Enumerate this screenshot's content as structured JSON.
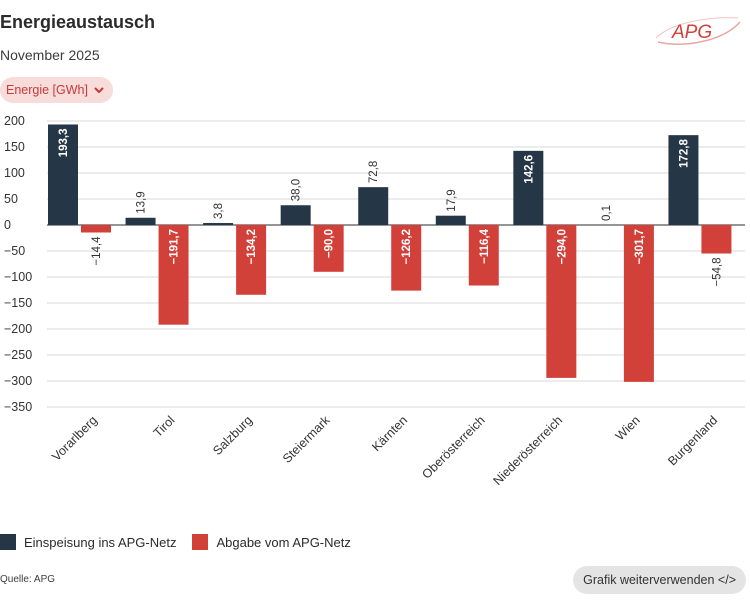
{
  "header": {
    "title": "Energieaustausch",
    "subtitle": "November 2025",
    "unit_selector": "Energie [GWh]"
  },
  "logo": {
    "text": "APG",
    "icon": "apg-logo"
  },
  "legend": {
    "items": [
      {
        "label": "Einspeisung ins APG-Netz",
        "color": "#253746"
      },
      {
        "label": "Abgabe vom APG-Netz",
        "color": "#d2403a"
      }
    ]
  },
  "footer": {
    "source": "Quelle: APG",
    "reuse_label": "Grafik weiterverwenden </>"
  },
  "chart_data": {
    "type": "bar",
    "categories": [
      "Vorarlberg",
      "Tirol",
      "Salzburg",
      "Steiermark",
      "Kärnten",
      "Oberösterreich",
      "Niederösterreich",
      "Wien",
      "Burgenland"
    ],
    "series": [
      {
        "name": "Einspeisung ins APG-Netz",
        "color": "#253746",
        "values": [
          193.3,
          13.9,
          3.8,
          38.0,
          72.8,
          17.9,
          142.6,
          0.1,
          172.8
        ],
        "labels": [
          "193,3",
          "13,9",
          "3,8",
          "38,0",
          "72,8",
          "17,9",
          "142,6",
          "0,1",
          "172,8"
        ]
      },
      {
        "name": "Abgabe vom APG-Netz",
        "color": "#d2403a",
        "values": [
          -14.4,
          -191.7,
          -134.2,
          -90.0,
          -126.2,
          -116.4,
          -294.0,
          -301.7,
          -54.8
        ],
        "labels": [
          "−14,4",
          "−191,7",
          "−134,2",
          "−90,0",
          "−126,2",
          "−116,4",
          "−294,0",
          "−301,7",
          "−54,8"
        ]
      }
    ],
    "yticks": [
      200,
      150,
      100,
      50,
      0,
      -50,
      -100,
      -150,
      -200,
      -250,
      -300,
      -350
    ],
    "ytick_labels": [
      "200",
      "150",
      "100",
      "50",
      "0",
      "−50",
      "−100",
      "−150",
      "−200",
      "−250",
      "−300",
      "−350"
    ],
    "ylim": [
      -350,
      200
    ],
    "grid": true
  }
}
